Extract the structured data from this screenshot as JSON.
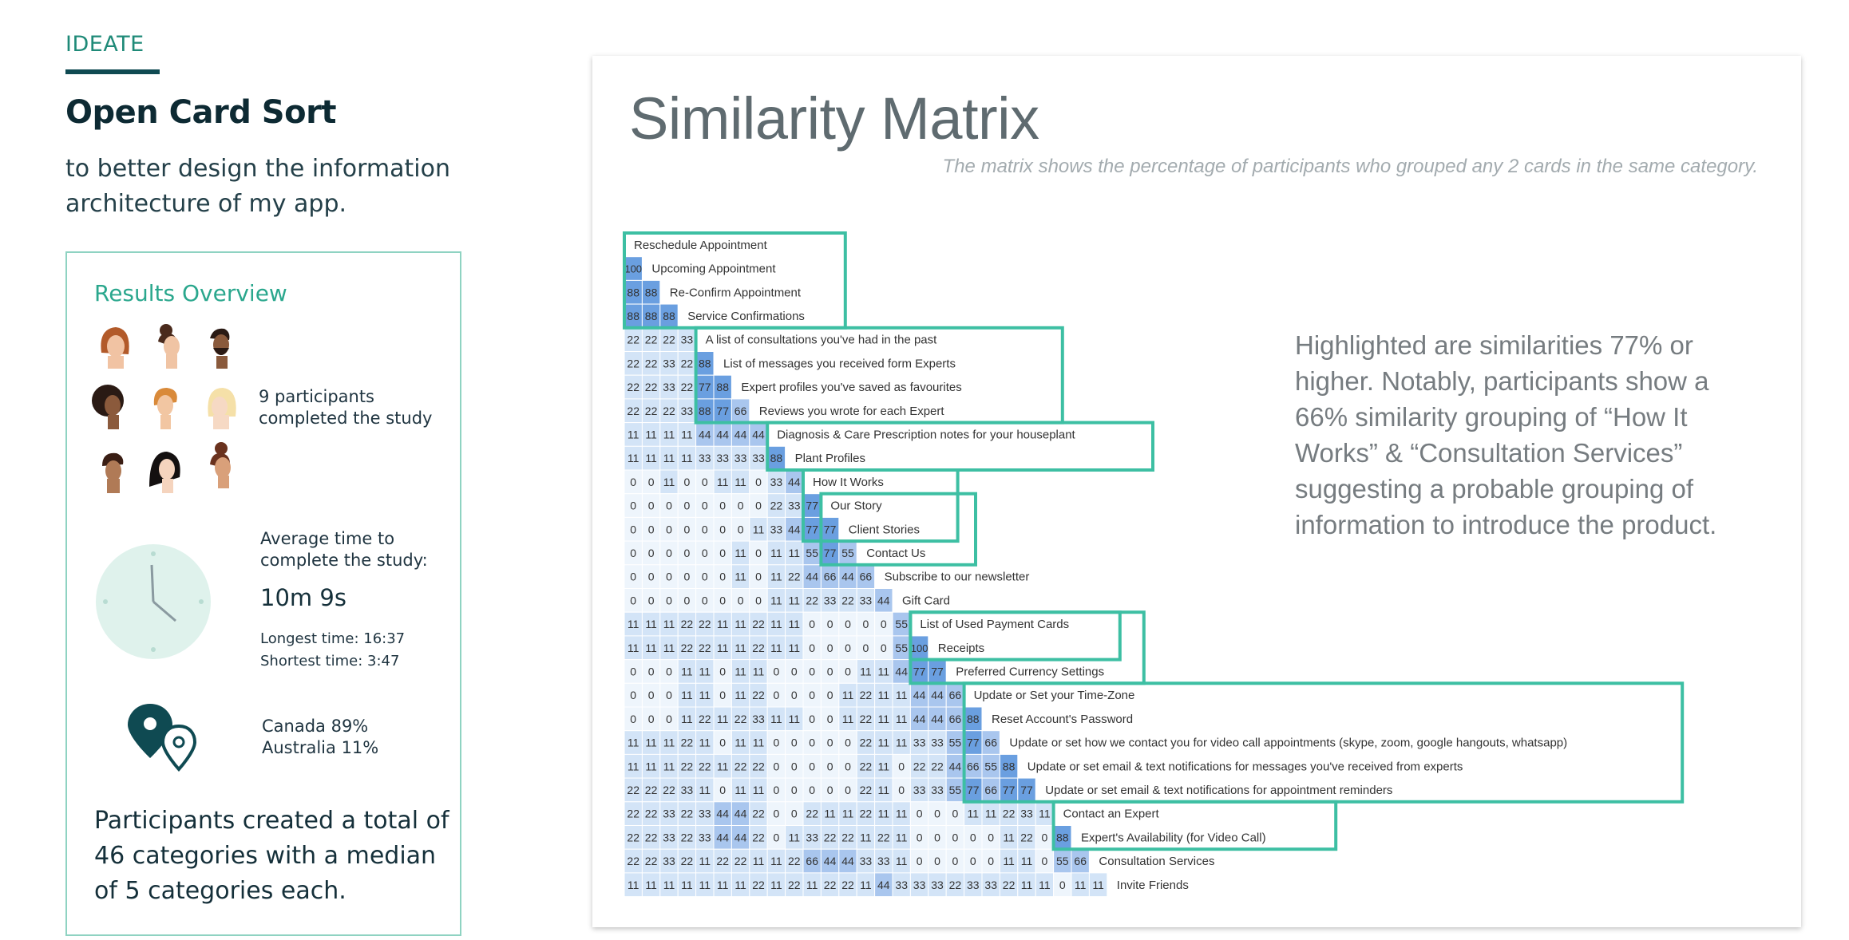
{
  "header": {
    "tag": "IDEATE",
    "title": "Open Card Sort",
    "subtitle": "to better design the information architecture of my app."
  },
  "results": {
    "title": "Results Overview",
    "participants_text": "9 participants completed the study",
    "avg_label": "Average time to complete the study:",
    "avg_value": "10m 9s",
    "longest": "Longest time: 16:37",
    "shortest": "Shortest time: 3:47",
    "countries": [
      "Canada 89%",
      "Australia 11%"
    ],
    "summary": "Participants created a total of 46 categories with a median of 5 categories each."
  },
  "matrix_card": {
    "title": "Similarity Matrix",
    "subtitle": "The matrix shows the percentage of participants who grouped any 2 cards in the same category.",
    "note": "Highlighted are similarities 77% or higher. Notably, participants show a 66% similarity grouping of “How It Works” & “Consultation Services” suggesting a probable grouping of information to introduce the product.",
    "colors": {
      "box": "#3dbfa3",
      "high": "#6a9fe0",
      "mid": "#a9c6ee",
      "low": "#d3e4f7",
      "zero": "#eef5fc"
    }
  },
  "chart_data": {
    "type": "heatmap",
    "title": "Similarity Matrix",
    "unit": "percent of participants",
    "labels": [
      "Reschedule Appointment",
      "Upcoming Appointment",
      "Re-Confirm Appointment",
      "Service Confirmations",
      "A list of consultations you've had in the past",
      "List of messages you received form Experts",
      "Expert profiles you've saved as favourites",
      "Reviews you wrote for each Expert",
      "Diagnosis & Care Prescription notes for your houseplant",
      "Plant Profiles",
      "How It Works",
      "Our Story",
      "Client Stories",
      "Contact Us",
      "Subscribe to our newsletter",
      "Gift Card",
      "List of Used Payment Cards",
      "Receipts",
      "Preferred Currency Settings",
      "Update or Set your Time-Zone",
      "Reset Account's Password",
      "Update or set how we contact you for video call appointments (skype, zoom, google hangouts, whatsapp)",
      "Update or set email & text notifications for messages you've received from experts",
      "Update or set email & text notifications for appointment reminders",
      "Contact an Expert",
      "Expert's Availability (for Video Call)",
      "Consultation Services",
      "Invite Friends"
    ],
    "rows": [
      [],
      [
        100
      ],
      [
        88,
        88
      ],
      [
        88,
        88,
        88
      ],
      [
        22,
        22,
        22,
        33
      ],
      [
        22,
        22,
        33,
        22,
        88
      ],
      [
        22,
        22,
        33,
        22,
        77,
        88
      ],
      [
        22,
        22,
        22,
        33,
        88,
        77,
        66
      ],
      [
        11,
        11,
        11,
        11,
        44,
        44,
        44,
        44
      ],
      [
        11,
        11,
        11,
        11,
        33,
        33,
        33,
        33,
        88
      ],
      [
        0,
        0,
        11,
        0,
        0,
        11,
        11,
        0,
        33,
        44
      ],
      [
        0,
        0,
        0,
        0,
        0,
        0,
        0,
        0,
        22,
        33,
        77
      ],
      [
        0,
        0,
        0,
        0,
        0,
        0,
        0,
        11,
        33,
        44,
        77,
        77
      ],
      [
        0,
        0,
        0,
        0,
        0,
        0,
        11,
        0,
        11,
        11,
        55,
        77,
        55
      ],
      [
        0,
        0,
        0,
        0,
        0,
        0,
        11,
        0,
        11,
        22,
        44,
        66,
        44,
        66
      ],
      [
        0,
        0,
        0,
        0,
        0,
        0,
        0,
        0,
        11,
        11,
        22,
        33,
        22,
        33,
        44
      ],
      [
        11,
        11,
        11,
        22,
        22,
        11,
        11,
        22,
        11,
        11,
        0,
        0,
        0,
        0,
        0,
        55
      ],
      [
        11,
        11,
        11,
        22,
        22,
        11,
        11,
        22,
        11,
        11,
        0,
        0,
        0,
        0,
        0,
        55,
        100
      ],
      [
        0,
        0,
        0,
        11,
        11,
        0,
        11,
        11,
        0,
        0,
        0,
        0,
        0,
        11,
        11,
        44,
        77,
        77
      ],
      [
        0,
        0,
        0,
        11,
        11,
        0,
        11,
        22,
        0,
        0,
        0,
        0,
        11,
        22,
        11,
        11,
        44,
        44,
        66
      ],
      [
        0,
        0,
        0,
        11,
        22,
        11,
        22,
        33,
        11,
        11,
        0,
        0,
        11,
        22,
        11,
        11,
        44,
        44,
        66,
        88
      ],
      [
        11,
        11,
        11,
        22,
        11,
        0,
        11,
        11,
        0,
        0,
        0,
        0,
        0,
        22,
        11,
        11,
        33,
        33,
        55,
        77,
        66
      ],
      [
        11,
        11,
        11,
        22,
        22,
        11,
        22,
        22,
        0,
        0,
        0,
        0,
        0,
        22,
        11,
        0,
        22,
        22,
        44,
        66,
        55,
        88
      ],
      [
        22,
        22,
        22,
        33,
        11,
        0,
        11,
        11,
        0,
        0,
        0,
        0,
        0,
        22,
        11,
        0,
        33,
        33,
        55,
        77,
        66,
        77,
        77
      ],
      [
        22,
        22,
        33,
        22,
        33,
        44,
        44,
        22,
        0,
        0,
        22,
        11,
        11,
        22,
        11,
        11,
        0,
        0,
        0,
        11,
        11,
        22,
        33,
        11
      ],
      [
        22,
        22,
        33,
        22,
        33,
        44,
        44,
        22,
        0,
        11,
        33,
        22,
        22,
        11,
        22,
        11,
        0,
        0,
        0,
        0,
        0,
        11,
        22,
        0,
        88
      ],
      [
        22,
        22,
        33,
        22,
        11,
        22,
        22,
        11,
        11,
        22,
        66,
        44,
        44,
        33,
        33,
        11,
        0,
        0,
        0,
        0,
        0,
        11,
        11,
        0,
        55,
        66
      ],
      [
        11,
        11,
        11,
        11,
        11,
        11,
        11,
        22,
        11,
        22,
        11,
        22,
        22,
        11,
        44,
        33,
        33,
        33,
        22,
        33,
        33,
        22,
        11,
        11,
        0,
        11,
        11
      ]
    ],
    "groups": [
      {
        "from": 0,
        "to": 3
      },
      {
        "from": 4,
        "to": 7
      },
      {
        "from": 8,
        "to": 9
      },
      {
        "from": 10,
        "to": 12
      },
      {
        "from": 11,
        "to": 13
      },
      {
        "from": 16,
        "to": 17
      },
      {
        "from": 16,
        "to": 18
      },
      {
        "from": 19,
        "to": 23
      },
      {
        "from": 24,
        "to": 25
      }
    ]
  }
}
